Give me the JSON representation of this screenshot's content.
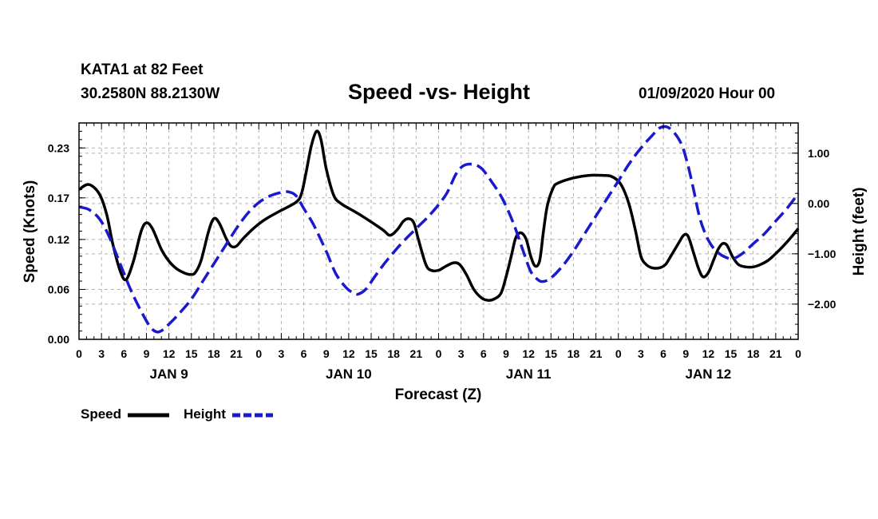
{
  "header": {
    "station": "KATA1 at 82 Feet",
    "coords": "30.2580N 88.2130W",
    "title": "Speed -vs- Height",
    "date": "01/09/2020 Hour 00"
  },
  "legend": {
    "speed": "Speed",
    "height": "Height"
  },
  "colors": {
    "speed": "#000000",
    "height": "#1a1acc",
    "grid": "#b4b4b4"
  },
  "chart_data": {
    "type": "line",
    "title": "Speed -vs- Height",
    "xlabel": "Forecast (Z)",
    "ylabel_left": "Speed (Knots)",
    "ylabel_right": "Height (feet)",
    "x_unit": "hours since 01/09/2020 00Z",
    "xlim": [
      0,
      96
    ],
    "ylim_left": [
      0,
      0.26
    ],
    "ylim_right": [
      -2.7,
      1.6
    ],
    "x_ticks": [
      0,
      3,
      6,
      9,
      12,
      15,
      18,
      21,
      24,
      27,
      30,
      33,
      36,
      39,
      42,
      45,
      48,
      51,
      54,
      57,
      60,
      63,
      66,
      69,
      72,
      75,
      78,
      81,
      84,
      87,
      90,
      93,
      96
    ],
    "x_tick_labels": [
      "0",
      "3",
      "6",
      "9",
      "12",
      "15",
      "18",
      "21",
      "0",
      "3",
      "6",
      "9",
      "12",
      "15",
      "18",
      "21",
      "0",
      "3",
      "6",
      "9",
      "12",
      "15",
      "18",
      "21",
      "0",
      "3",
      "6",
      "9",
      "12",
      "15",
      "18",
      "21",
      "0"
    ],
    "day_labels": [
      {
        "x": 12,
        "label": "JAN 9"
      },
      {
        "x": 36,
        "label": "JAN 10"
      },
      {
        "x": 60,
        "label": "JAN 11"
      },
      {
        "x": 84,
        "label": "JAN 12"
      }
    ],
    "y_ticks_left": [
      0.0,
      0.06,
      0.12,
      0.17,
      0.23
    ],
    "y_tick_labels_left": [
      "0.00",
      "0.06",
      "0.12",
      "0.17",
      "0.23"
    ],
    "y_ticks_right": [
      -2.0,
      -1.0,
      0.0,
      1.0
    ],
    "y_tick_labels_right": [
      "−2.00",
      "−1.00",
      "0.00",
      "1.00"
    ],
    "series": [
      {
        "name": "Speed",
        "axis": "left",
        "style": "solid",
        "points": [
          [
            0,
            0.18
          ],
          [
            1.3,
            0.186
          ],
          [
            2.7,
            0.175
          ],
          [
            3.7,
            0.15
          ],
          [
            4.5,
            0.115
          ],
          [
            5.5,
            0.082
          ],
          [
            6.3,
            0.072
          ],
          [
            7.3,
            0.095
          ],
          [
            8.3,
            0.13
          ],
          [
            9,
            0.14
          ],
          [
            9.8,
            0.133
          ],
          [
            11,
            0.108
          ],
          [
            12,
            0.094
          ],
          [
            13,
            0.085
          ],
          [
            14,
            0.08
          ],
          [
            14.8,
            0.078
          ],
          [
            15.5,
            0.08
          ],
          [
            16.3,
            0.095
          ],
          [
            17.3,
            0.13
          ],
          [
            18,
            0.145
          ],
          [
            18.7,
            0.14
          ],
          [
            19.7,
            0.12
          ],
          [
            20.3,
            0.112
          ],
          [
            21,
            0.112
          ],
          [
            22,
            0.122
          ],
          [
            23.5,
            0.135
          ],
          [
            25,
            0.145
          ],
          [
            27,
            0.155
          ],
          [
            29,
            0.165
          ],
          [
            29.7,
            0.175
          ],
          [
            30.3,
            0.2
          ],
          [
            31,
            0.232
          ],
          [
            31.7,
            0.25
          ],
          [
            32.3,
            0.24
          ],
          [
            33,
            0.205
          ],
          [
            34,
            0.173
          ],
          [
            35,
            0.163
          ],
          [
            36.5,
            0.155
          ],
          [
            38,
            0.147
          ],
          [
            40.5,
            0.132
          ],
          [
            41.5,
            0.125
          ],
          [
            42.5,
            0.132
          ],
          [
            43.3,
            0.142
          ],
          [
            44,
            0.145
          ],
          [
            44.7,
            0.14
          ],
          [
            45.3,
            0.12
          ],
          [
            46.3,
            0.09
          ],
          [
            47,
            0.083
          ],
          [
            48,
            0.083
          ],
          [
            49,
            0.088
          ],
          [
            50,
            0.092
          ],
          [
            50.8,
            0.09
          ],
          [
            51.7,
            0.078
          ],
          [
            52.7,
            0.06
          ],
          [
            53.7,
            0.05
          ],
          [
            54.5,
            0.047
          ],
          [
            55.3,
            0.048
          ],
          [
            56.3,
            0.055
          ],
          [
            57,
            0.075
          ],
          [
            57.7,
            0.1
          ],
          [
            58.3,
            0.122
          ],
          [
            59,
            0.128
          ],
          [
            59.7,
            0.12
          ],
          [
            60.3,
            0.1
          ],
          [
            60.9,
            0.088
          ],
          [
            61.5,
            0.095
          ],
          [
            62,
            0.13
          ],
          [
            62.5,
            0.16
          ],
          [
            63.3,
            0.182
          ],
          [
            64,
            0.188
          ],
          [
            66,
            0.194
          ],
          [
            68,
            0.197
          ],
          [
            70,
            0.197
          ],
          [
            71,
            0.196
          ],
          [
            72,
            0.19
          ],
          [
            72.7,
            0.18
          ],
          [
            73.5,
            0.16
          ],
          [
            74.3,
            0.13
          ],
          [
            75,
            0.1
          ],
          [
            75.7,
            0.09
          ],
          [
            76.5,
            0.086
          ],
          [
            77.5,
            0.086
          ],
          [
            78.3,
            0.09
          ],
          [
            79,
            0.1
          ],
          [
            80,
            0.115
          ],
          [
            80.7,
            0.125
          ],
          [
            81.3,
            0.124
          ],
          [
            82,
            0.105
          ],
          [
            82.7,
            0.085
          ],
          [
            83.3,
            0.075
          ],
          [
            84,
            0.08
          ],
          [
            84.7,
            0.095
          ],
          [
            85.3,
            0.108
          ],
          [
            85.9,
            0.115
          ],
          [
            86.5,
            0.113
          ],
          [
            87.2,
            0.1
          ],
          [
            88,
            0.09
          ],
          [
            89,
            0.087
          ],
          [
            90,
            0.087
          ],
          [
            91,
            0.09
          ],
          [
            92,
            0.095
          ],
          [
            93,
            0.103
          ],
          [
            94,
            0.112
          ],
          [
            95,
            0.122
          ],
          [
            96,
            0.133
          ]
        ]
      },
      {
        "name": "Height",
        "axis": "right",
        "style": "dashed",
        "points": [
          [
            0,
            -0.07
          ],
          [
            1.3,
            -0.12
          ],
          [
            2.7,
            -0.3
          ],
          [
            4,
            -0.65
          ],
          [
            5.5,
            -1.2
          ],
          [
            7,
            -1.75
          ],
          [
            8.5,
            -2.2
          ],
          [
            9.5,
            -2.45
          ],
          [
            10.3,
            -2.55
          ],
          [
            11,
            -2.53
          ],
          [
            12,
            -2.4
          ],
          [
            13.3,
            -2.2
          ],
          [
            15,
            -1.9
          ],
          [
            16.5,
            -1.55
          ],
          [
            18,
            -1.2
          ],
          [
            19.5,
            -0.85
          ],
          [
            21,
            -0.5
          ],
          [
            22.5,
            -0.2
          ],
          [
            24,
            0.02
          ],
          [
            25.5,
            0.15
          ],
          [
            27,
            0.22
          ],
          [
            28,
            0.23
          ],
          [
            29,
            0.15
          ],
          [
            30,
            -0.1
          ],
          [
            31.3,
            -0.42
          ],
          [
            33,
            -0.95
          ],
          [
            34.3,
            -1.4
          ],
          [
            35.7,
            -1.68
          ],
          [
            36.7,
            -1.78
          ],
          [
            37.3,
            -1.8
          ],
          [
            38.3,
            -1.7
          ],
          [
            39.5,
            -1.45
          ],
          [
            41,
            -1.15
          ],
          [
            43,
            -0.8
          ],
          [
            45,
            -0.5
          ],
          [
            47,
            -0.2
          ],
          [
            49,
            0.18
          ],
          [
            50.3,
            0.58
          ],
          [
            51.3,
            0.75
          ],
          [
            52.5,
            0.78
          ],
          [
            53.7,
            0.7
          ],
          [
            55,
            0.45
          ],
          [
            56.5,
            0.1
          ],
          [
            58,
            -0.4
          ],
          [
            59.3,
            -0.95
          ],
          [
            60.3,
            -1.35
          ],
          [
            61.3,
            -1.52
          ],
          [
            62,
            -1.55
          ],
          [
            63,
            -1.48
          ],
          [
            64.5,
            -1.25
          ],
          [
            66,
            -0.95
          ],
          [
            67.5,
            -0.6
          ],
          [
            69,
            -0.25
          ],
          [
            70.5,
            0.1
          ],
          [
            72,
            0.45
          ],
          [
            73.5,
            0.8
          ],
          [
            75,
            1.1
          ],
          [
            76.5,
            1.35
          ],
          [
            77.5,
            1.5
          ],
          [
            78.5,
            1.52
          ],
          [
            79.5,
            1.4
          ],
          [
            80.5,
            1.15
          ],
          [
            81.3,
            0.75
          ],
          [
            82,
            0.3
          ],
          [
            82.8,
            -0.25
          ],
          [
            83.6,
            -0.6
          ],
          [
            84.5,
            -0.85
          ],
          [
            85.5,
            -1.0
          ],
          [
            86.5,
            -1.08
          ],
          [
            87.3,
            -1.1
          ],
          [
            88.5,
            -1.0
          ],
          [
            90,
            -0.8
          ],
          [
            91.5,
            -0.6
          ],
          [
            93,
            -0.35
          ],
          [
            94.5,
            -0.1
          ],
          [
            96,
            0.2
          ]
        ]
      }
    ]
  }
}
